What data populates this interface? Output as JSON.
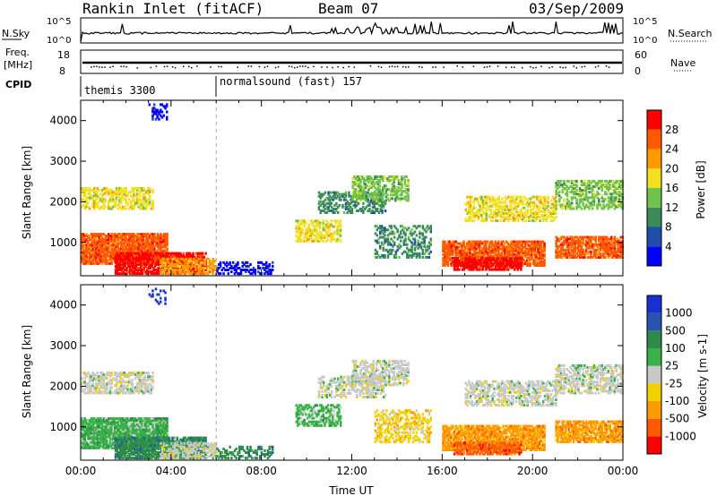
{
  "header": {
    "station": "Rankin Inlet (fitACF)",
    "beam": "Beam 07",
    "date": "03/Sep/2009"
  },
  "strip_labels": {
    "nsky": "N.Sky",
    "nsearch": "N.Search",
    "freq": "Freq.",
    "freq_unit": "[MHz]",
    "nave": "Nave",
    "cpid": "CPID",
    "nsky_ticks": [
      "10^5",
      "10^0"
    ],
    "nsearch_ticks": [
      "10^5",
      "10^0"
    ],
    "freq_ticks": [
      "18",
      "8"
    ],
    "nave_ticks": [
      "60",
      "0"
    ]
  },
  "cpid_modes": [
    {
      "name": "themis 3300",
      "start_hour": 0
    },
    {
      "name": "normalsound (fast) 157",
      "start_hour": 6
    }
  ],
  "colors": {
    "power": [
      "#0000ff",
      "#1f4fa8",
      "#3a8a5a",
      "#6fc24a",
      "#f0e020",
      "#ff9a00",
      "#ff5a00",
      "#ff0000"
    ],
    "velocity": [
      "#1a2fd0",
      "#2a52b0",
      "#2e8a4a",
      "#3ab24a",
      "#c8c8c8",
      "#f2d000",
      "#ff9a00",
      "#ff5a00",
      "#ff0000"
    ]
  },
  "chart_data": [
    {
      "type": "heatmap",
      "panel": "power",
      "xlabel": "",
      "ylabel": "Slant Range [km]",
      "xlim": [
        0,
        24
      ],
      "ylim": [
        180,
        4500
      ],
      "yticks": [
        1000,
        2000,
        3000,
        4000
      ],
      "colorbar": {
        "label": "Power [dB]",
        "ticks": [
          "4",
          "8",
          "12",
          "16",
          "20",
          "24",
          "28"
        ],
        "range": [
          0,
          32
        ]
      }
    },
    {
      "type": "heatmap",
      "panel": "velocity",
      "xlabel": "Time UT",
      "ylabel": "Slant Range [km]",
      "xlim": [
        0,
        24
      ],
      "ylim": [
        180,
        4500
      ],
      "xticks": [
        "00:00",
        "04:00",
        "08:00",
        "12:00",
        "16:00",
        "20:00",
        "00:00"
      ],
      "yticks": [
        1000,
        2000,
        3000,
        4000
      ],
      "colorbar": {
        "label": "Velocity [m s-1]",
        "ticks": [
          "1000",
          "500",
          "100",
          "25",
          "-25",
          "-100",
          "-500",
          "-1000"
        ]
      }
    }
  ]
}
